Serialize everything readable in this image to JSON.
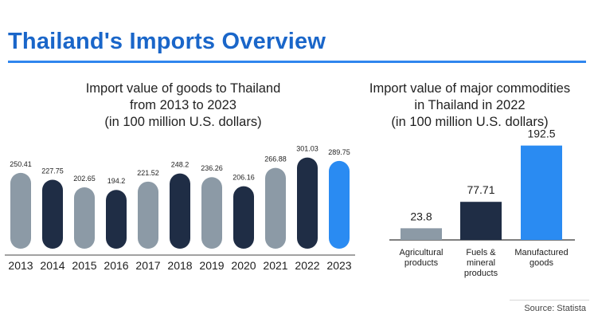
{
  "header": {
    "title": "Thailand's Imports Overview"
  },
  "source": "Source: Statista",
  "colors": {
    "dark": "#1f2d45",
    "gray": "#8c9aa6",
    "blue": "#2a8bf2",
    "title_blue": "#1a66c9"
  },
  "chart_data": [
    {
      "type": "bar",
      "title_lines": [
        "Import value of goods to Thailand",
        "from 2013 to 2023",
        "(in 100 million U.S. dollars)"
      ],
      "categories": [
        "2013",
        "2014",
        "2015",
        "2016",
        "2017",
        "2018",
        "2019",
        "2020",
        "2021",
        "2022",
        "2023"
      ],
      "values": [
        250.41,
        227.75,
        202.65,
        194.2,
        221.52,
        248.2,
        236.26,
        206.16,
        266.88,
        301.03,
        289.75
      ],
      "value_labels": [
        "250.41",
        "227.75",
        "202.65",
        "194.2",
        "221.52",
        "248.2",
        "236.26",
        "206.16",
        "266.88",
        "301.03",
        "289.75"
      ],
      "bar_colors": [
        "gray",
        "dark",
        "gray",
        "dark",
        "gray",
        "dark",
        "gray",
        "dark",
        "gray",
        "dark",
        "blue"
      ],
      "xlabel": "",
      "ylabel": "",
      "grid": false
    },
    {
      "type": "bar",
      "title_lines": [
        "Import value of major commodities",
        "in Thailand in 2022",
        "(in 100 million U.S. dollars)"
      ],
      "categories": [
        [
          "Agricultural",
          "products"
        ],
        [
          "Fuels &",
          "mineral",
          "products"
        ],
        [
          "Manufactured",
          "goods"
        ]
      ],
      "values": [
        23.8,
        77.71,
        192.5
      ],
      "value_labels": [
        "23.8",
        "77.71",
        "192.5"
      ],
      "bar_colors": [
        "gray",
        "dark",
        "blue"
      ],
      "xlabel": "",
      "ylabel": "",
      "grid": false
    }
  ]
}
